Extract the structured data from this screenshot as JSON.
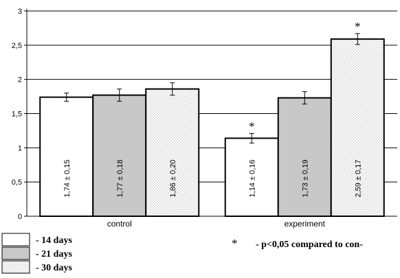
{
  "chart_data": {
    "type": "bar",
    "categories": [
      "control",
      "experiment"
    ],
    "series": [
      {
        "name": "- 14 days",
        "values": [
          1.74,
          1.14
        ],
        "errors": [
          0.06,
          0.07
        ],
        "labels": [
          "1,74 ± 0,15",
          "1,14 ± 0,16"
        ],
        "marks": [
          "",
          "*"
        ],
        "fill": "#ffffff"
      },
      {
        "name": "- 21 days",
        "values": [
          1.77,
          1.73
        ],
        "errors": [
          0.09,
          0.09
        ],
        "labels": [
          "1,77 ± 0,18",
          "1,73 ± 0,19"
        ],
        "marks": [
          "",
          ""
        ],
        "fill": "#c8c8c8"
      },
      {
        "name": "- 30 days",
        "values": [
          1.86,
          2.59
        ],
        "errors": [
          0.09,
          0.08
        ],
        "labels": [
          "1,86 ± 0,20",
          "2,59 ± 0,17"
        ],
        "marks": [
          "",
          "*"
        ],
        "fill": "dots"
      }
    ],
    "yticks": [
      "0",
      "0,5",
      "1",
      "1,5",
      "2",
      "2,5",
      "3"
    ],
    "ylim": [
      0,
      3
    ],
    "grid": true,
    "legend_position": "bottom-left",
    "footnote": {
      "symbol": "*",
      "text": "- p<0,05 compared to con-"
    }
  }
}
